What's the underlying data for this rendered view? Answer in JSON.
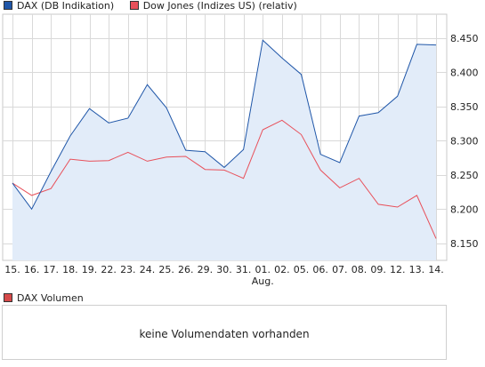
{
  "legend": {
    "dax_label": "DAX (DB Indikation)",
    "dow_label": "Dow Jones (Indizes US) (relativ)",
    "dax_color": "#1f56a8",
    "dow_color": "#e8505a"
  },
  "volume": {
    "legend_label": "DAX Volumen",
    "swatch_color": "#d64a4a",
    "message": "keine Volumendaten vorhanden"
  },
  "chart_data": {
    "type": "area",
    "categories": [
      "15.",
      "16.",
      "17.",
      "18.",
      "19.",
      "22.",
      "23.",
      "24.",
      "25.",
      "26.",
      "29.",
      "30.",
      "31.",
      "01.",
      "02.",
      "05.",
      "06.",
      "07.",
      "08.",
      "09.",
      "12.",
      "13.",
      "14."
    ],
    "month_label": "Aug.",
    "month_label_index": 13,
    "ylim": [
      8125,
      8485
    ],
    "yticks": [
      8150,
      8200,
      8250,
      8300,
      8350,
      8400,
      8450
    ],
    "ytick_labels": [
      "8.150",
      "8.200",
      "8.250",
      "8.300",
      "8.350",
      "8.400",
      "8.450"
    ],
    "grid": true,
    "series": [
      {
        "name": "DAX (DB Indikation)",
        "color": "#1f56a8",
        "fill": "#e2ecf9",
        "values": [
          8238,
          8200,
          8255,
          8307,
          8347,
          8326,
          8333,
          8382,
          8348,
          8286,
          8284,
          8261,
          8287,
          8447,
          8421,
          8397,
          8280,
          8268,
          8336,
          8341,
          8365,
          8441,
          8440
        ]
      },
      {
        "name": "Dow Jones (Indizes US) (relativ)",
        "color": "#e8505a",
        "values": [
          8238,
          8220,
          8230,
          8273,
          8270,
          8271,
          8283,
          8270,
          8276,
          8277,
          8258,
          8257,
          8245,
          8316,
          8330,
          8309,
          8257,
          8231,
          8245,
          8207,
          8203,
          8220,
          8157
        ]
      }
    ]
  }
}
